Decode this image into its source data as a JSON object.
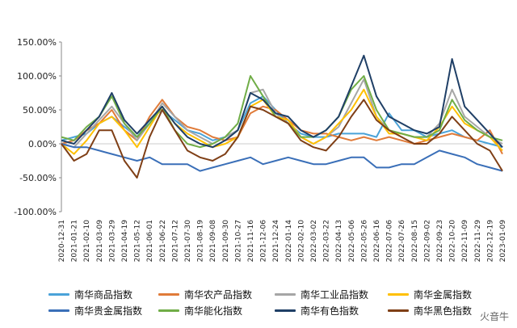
{
  "chart_data": {
    "type": "line",
    "title": "",
    "xlabel": "",
    "ylabel": "",
    "ylim": [
      -100,
      150
    ],
    "y_ticks": [
      "150.00%",
      "100.00%",
      "50.00%",
      "0.00%",
      "-50.00%",
      "-100.00%"
    ],
    "x_ticks": [
      "2020-12-31",
      "2021-01-21",
      "2021-02-10",
      "2021-03-09",
      "2021-03-29",
      "2021-04-19",
      "2021-05-12",
      "2021-06-01",
      "2021-06-22",
      "2021-07-12",
      "2021-07-30",
      "2021-08-19",
      "2021-09-08",
      "2021-09-30",
      "2021-10-27",
      "2021-11-16",
      "2021-12-06",
      "2021-12-24",
      "2022-01-14",
      "2022-02-10",
      "2022-03-02",
      "2022-03-22",
      "2022-04-13",
      "2022-05-06",
      "2022-05-26",
      "2022-06-16",
      "2022-07-06",
      "2022-07-26",
      "2022-08-15",
      "2022-09-02",
      "2022-09-23",
      "2022-10-20",
      "2022-11-09",
      "2022-11-29",
      "2022-12-19",
      "2023-01-09"
    ],
    "legend_position": "bottom",
    "grid": false,
    "series": [
      {
        "name": "南华商品指数",
        "color": "#4aa3d9",
        "values": [
          5,
          10,
          15,
          30,
          40,
          25,
          10,
          35,
          50,
          35,
          20,
          15,
          5,
          10,
          20,
          60,
          70,
          50,
          30,
          15,
          10,
          10,
          15,
          15,
          15,
          10,
          45,
          20,
          20,
          10,
          15,
          20,
          10,
          5,
          0,
          -5
        ]
      },
      {
        "name": "南华农产品指数",
        "color": "#e07b39",
        "values": [
          0,
          5,
          20,
          30,
          50,
          20,
          5,
          40,
          65,
          40,
          25,
          20,
          10,
          5,
          10,
          45,
          55,
          50,
          35,
          20,
          15,
          15,
          10,
          5,
          10,
          5,
          10,
          5,
          0,
          5,
          10,
          15,
          10,
          5,
          20,
          -15
        ]
      },
      {
        "name": "南华工业品指数",
        "color": "#a6a6a6",
        "values": [
          0,
          -5,
          15,
          35,
          55,
          30,
          5,
          30,
          60,
          40,
          20,
          10,
          0,
          10,
          20,
          75,
          80,
          45,
          30,
          10,
          0,
          10,
          25,
          60,
          95,
          40,
          20,
          15,
          10,
          10,
          30,
          80,
          40,
          25,
          10,
          0
        ]
      },
      {
        "name": "南华金属指数",
        "color": "#ffc000",
        "values": [
          0,
          -15,
          5,
          30,
          40,
          20,
          -5,
          25,
          55,
          30,
          15,
          5,
          -5,
          0,
          10,
          55,
          65,
          40,
          35,
          10,
          0,
          10,
          30,
          50,
          80,
          40,
          15,
          15,
          10,
          5,
          25,
          55,
          30,
          20,
          10,
          -10
        ]
      },
      {
        "name": "南华贵金属指数",
        "color": "#3a6fb8",
        "values": [
          0,
          -5,
          -5,
          -10,
          -15,
          -20,
          -25,
          -20,
          -30,
          -30,
          -30,
          -40,
          -35,
          -30,
          -25,
          -20,
          -30,
          -25,
          -20,
          -25,
          -30,
          -30,
          -25,
          -20,
          -20,
          -35,
          -35,
          -30,
          -30,
          -20,
          -10,
          -15,
          -20,
          -30,
          -35,
          -40
        ]
      },
      {
        "name": "南华能化指数",
        "color": "#70ad47",
        "values": [
          10,
          5,
          25,
          40,
          70,
          30,
          10,
          30,
          55,
          20,
          0,
          -5,
          0,
          10,
          30,
          100,
          70,
          40,
          30,
          10,
          10,
          20,
          40,
          80,
          100,
          50,
          20,
          15,
          10,
          10,
          20,
          65,
          35,
          20,
          10,
          5
        ]
      },
      {
        "name": "南华有色指数",
        "color": "#1f3f66",
        "values": [
          5,
          0,
          20,
          40,
          75,
          35,
          15,
          35,
          55,
          30,
          10,
          0,
          -5,
          5,
          20,
          75,
          65,
          45,
          40,
          20,
          10,
          20,
          40,
          85,
          130,
          70,
          40,
          30,
          20,
          15,
          25,
          125,
          55,
          35,
          15,
          -5
        ]
      },
      {
        "name": "南华黑色指数",
        "color": "#7f3f16",
        "values": [
          0,
          -25,
          -15,
          20,
          20,
          -25,
          -50,
          10,
          50,
          20,
          -10,
          -20,
          -25,
          -15,
          10,
          55,
          50,
          40,
          30,
          5,
          -5,
          -10,
          10,
          40,
          65,
          35,
          20,
          10,
          0,
          0,
          15,
          40,
          20,
          0,
          -10,
          -40
        ]
      }
    ]
  },
  "legend_items": [
    "南华商品指数",
    "南华农产品指数",
    "南华工业品指数",
    "南华金属指数",
    "南华贵金属指数",
    "南华能化指数",
    "南华有色指数",
    "南华黑色指数"
  ],
  "watermark": "火音牛"
}
